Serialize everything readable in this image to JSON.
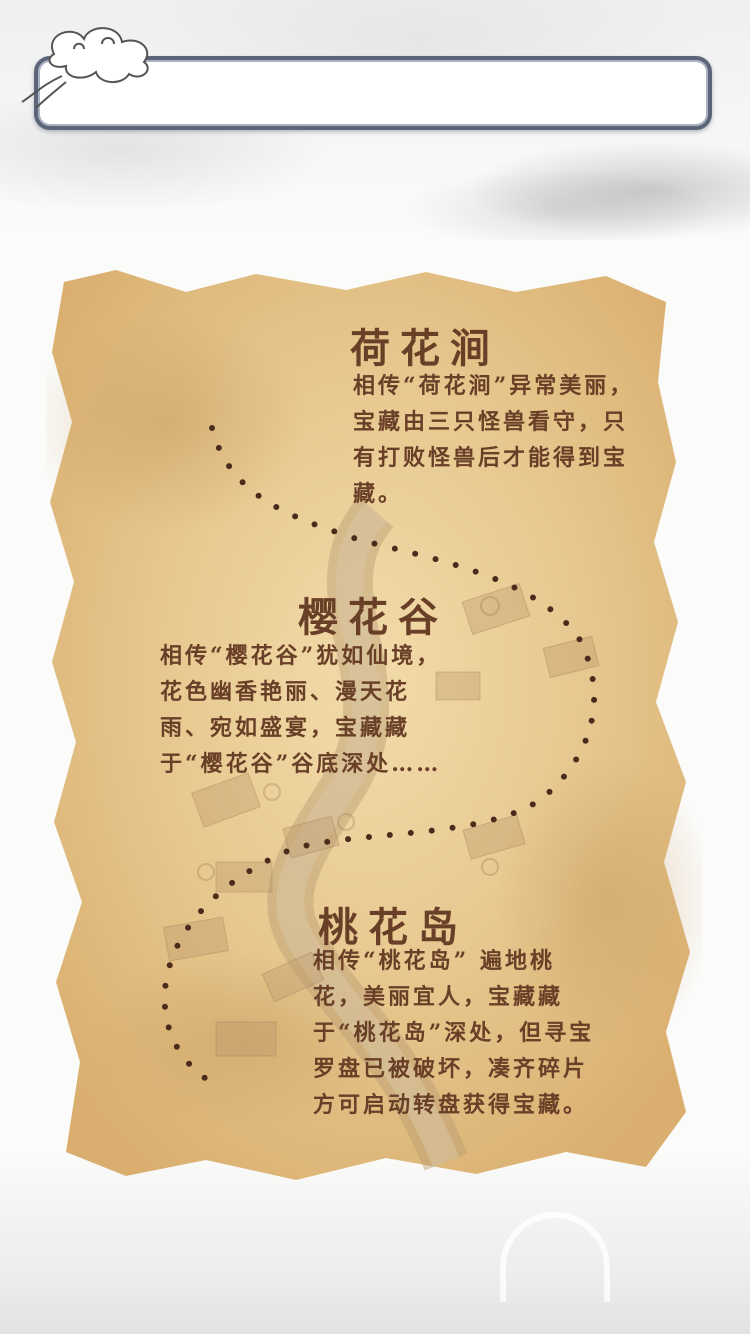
{
  "header": {
    "title": ""
  },
  "places": [
    {
      "name": "荷花涧",
      "description": "相传“荷花涧”异常美丽，宝藏由三只怪兽看守，只有打败怪兽后才能得到宝藏。"
    },
    {
      "name": "樱花谷",
      "description": "相传“樱花谷”犹如仙境，花色幽香艳丽、漫天花雨、宛如盛宴，宝藏藏于“樱花谷”谷底深处……"
    },
    {
      "name": "桃花岛",
      "description": "相传“桃花岛” 遍地桃花，美丽宜人，宝藏藏于“桃花岛”深处，但寻宝罗盘已被破坏，凑齐碎片方可启动转盘获得宝藏。"
    }
  ],
  "colors": {
    "text": "#6a3f27",
    "parchment": "#e7c98f",
    "frame": "#5c6678"
  },
  "icons": {
    "header_ornament": "cloud-icon"
  }
}
